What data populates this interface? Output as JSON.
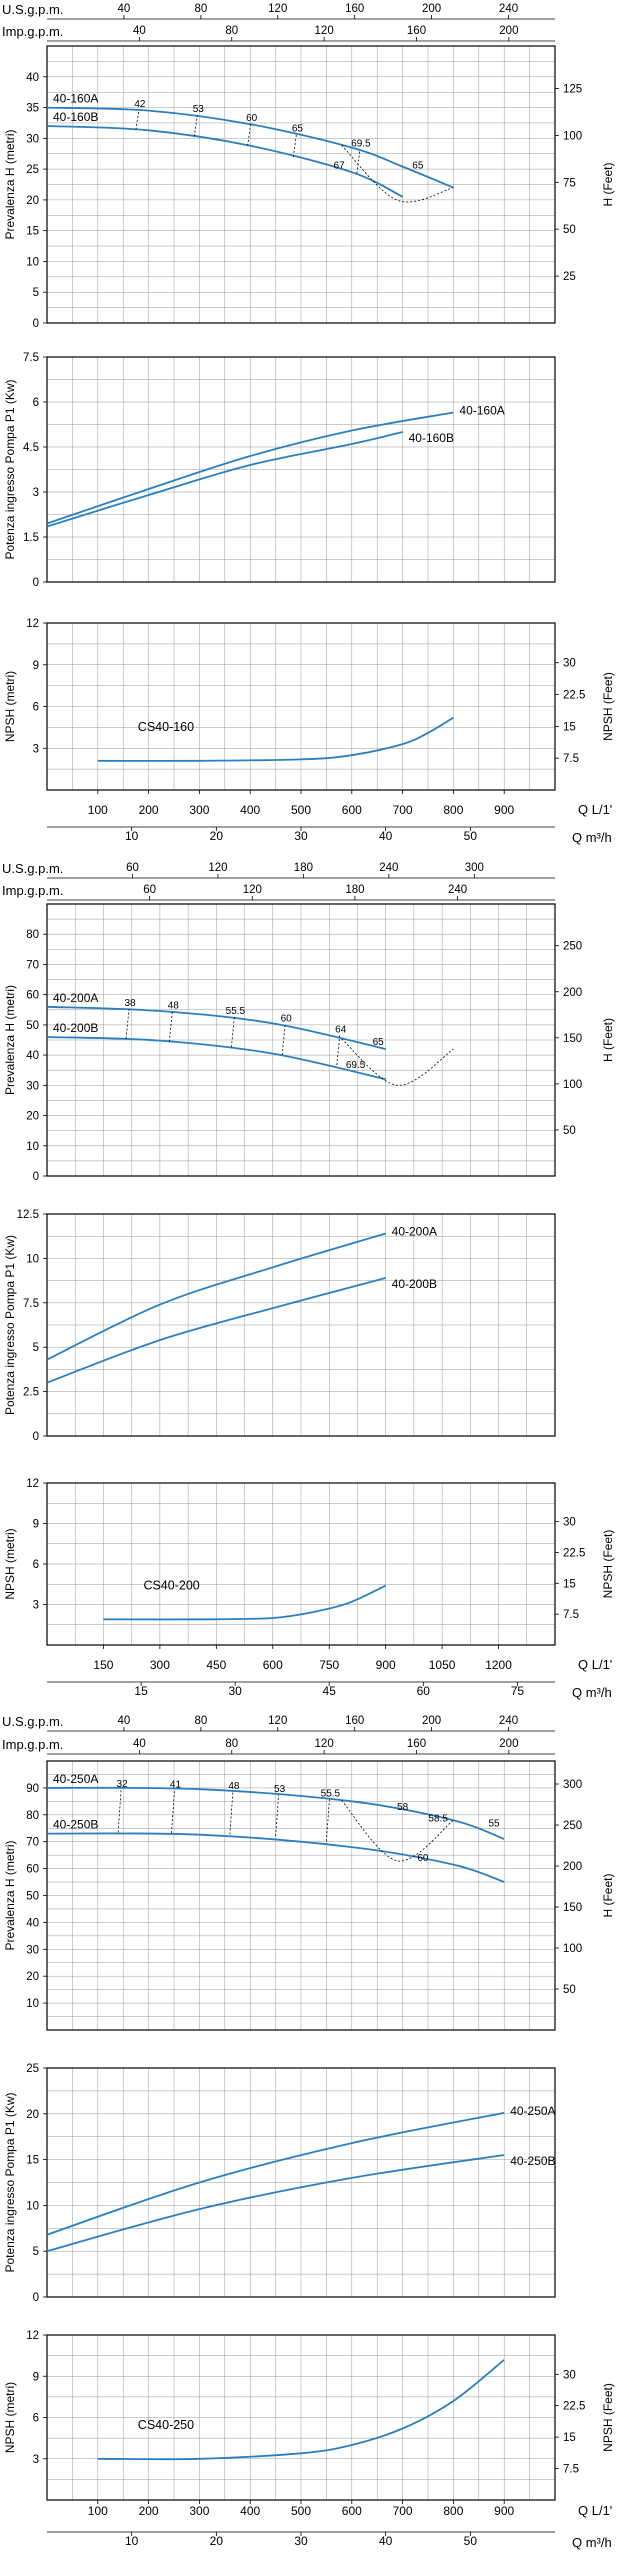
{
  "colors": {
    "curve": "#2a7fc0",
    "grid": "#9a9a9a",
    "frame": "#000000",
    "efficiency": "#000000"
  },
  "chart_data": [
    {
      "group": "40-160",
      "scales": [
        {
          "label": "U.S.g.p.m.",
          "ticks": [
            40,
            80,
            120,
            160,
            200,
            240
          ],
          "per_lmin": 0.264172
        },
        {
          "label": "Imp.g.p.m.",
          "ticks": [
            40,
            80,
            120,
            160,
            200
          ],
          "per_lmin": 0.219969
        }
      ],
      "bottom_scale": {
        "label": "Q m³/h",
        "ticks": [
          10,
          20,
          30,
          40,
          50
        ],
        "per_lmin": 0.06
      },
      "flow_axis": {
        "label": "Q L/1'",
        "min": 0,
        "max": 1000,
        "grid_step": 50,
        "ticks": [
          100,
          200,
          300,
          400,
          500,
          600,
          700,
          800,
          900
        ]
      },
      "panels": [
        {
          "type": "line",
          "ylabel": "Prevalenza H (metri)",
          "ylim": [
            0,
            45
          ],
          "grid_step": 2.5,
          "yticks": [
            0,
            5,
            10,
            15,
            20,
            25,
            30,
            35,
            40
          ],
          "right_axis": {
            "label": "H (Feet)",
            "ticks": [
              25,
              50,
              75,
              100,
              125
            ],
            "per_unit": 3.28084
          },
          "series": [
            {
              "name": "40-160A",
              "x": [
                0,
                200,
                400,
                600,
                700,
                800
              ],
              "y": [
                35.0,
                34.5,
                32.3,
                28.5,
                25.4,
                22.0
              ]
            },
            {
              "name": "40-160B",
              "x": [
                0,
                200,
                400,
                600,
                700
              ],
              "y": [
                32.0,
                31.3,
                28.8,
                24.5,
                20.5
              ]
            }
          ],
          "efficiency": [
            {
              "label": "42",
              "x": 175,
              "y1": 31.4,
              "y2": 34.6
            },
            {
              "label": "53",
              "x": 290,
              "y1": 30.3,
              "y2": 33.8
            },
            {
              "label": "60",
              "x": 395,
              "y1": 28.8,
              "y2": 32.3
            },
            {
              "label": "65",
              "x": 485,
              "y1": 27.0,
              "y2": 30.6
            },
            {
              "label": "69.5",
              "x": 610,
              "y1": 24.3,
              "y2": 28.2
            },
            {
              "label": "67",
              "x": 575,
              "y1": 24.8,
              "y2": 24.8
            },
            {
              "label": "65",
              "x": 730,
              "y1": 24.8,
              "y2": 24.8
            }
          ]
        },
        {
          "type": "line",
          "ylabel": "Potenza ingresso Pompa P1 (Kw)",
          "ylim": [
            0,
            7.5
          ],
          "grid_step": 0.75,
          "yticks": [
            0,
            1.5,
            3,
            4.5,
            6,
            7.5
          ],
          "series": [
            {
              "name": "40-160A",
              "x": [
                0,
                200,
                400,
                600,
                800
              ],
              "y": [
                1.95,
                3.1,
                4.2,
                5.05,
                5.65
              ]
            },
            {
              "name": "40-160B",
              "x": [
                0,
                200,
                400,
                600,
                700
              ],
              "y": [
                1.85,
                2.9,
                3.9,
                4.6,
                5.0
              ]
            }
          ]
        },
        {
          "type": "line",
          "ylabel": "NPSH (metri)",
          "ylim": [
            0,
            12
          ],
          "grid_step": 1.5,
          "yticks": [
            3,
            6,
            9,
            12
          ],
          "right_axis": {
            "label": "NPSH (Feet)",
            "ticks": [
              7.5,
              15,
              22.5,
              30
            ],
            "per_unit": 3.28084
          },
          "series": [
            {
              "name": "CS40-160",
              "x": [
                100,
                300,
                500,
                600,
                700,
                750,
                800
              ],
              "y": [
                2.1,
                2.1,
                2.2,
                2.5,
                3.3,
                4.1,
                5.2
              ]
            }
          ]
        }
      ]
    },
    {
      "group": "40-200",
      "scales": [
        {
          "label": "U.S.g.p.m.",
          "ticks": [
            60,
            120,
            180,
            240,
            300
          ],
          "per_lmin": 0.264172
        },
        {
          "label": "Imp.g.p.m.",
          "ticks": [
            60,
            120,
            180,
            240
          ],
          "per_lmin": 0.219969
        }
      ],
      "bottom_scale": {
        "label": "Q m³/h",
        "ticks": [
          15,
          30,
          45,
          60,
          75
        ],
        "per_lmin": 0.06
      },
      "flow_axis": {
        "label": "Q L/1'",
        "min": 0,
        "max": 1350,
        "grid_step": 75,
        "ticks": [
          150,
          300,
          450,
          600,
          750,
          900,
          1050,
          1200
        ]
      },
      "panels": [
        {
          "type": "line",
          "ylabel": "Prevalenza H (metri)",
          "ylim": [
            0,
            90
          ],
          "grid_step": 5,
          "yticks": [
            0,
            10,
            20,
            30,
            40,
            50,
            60,
            70,
            80
          ],
          "right_axis": {
            "label": "H (Feet)",
            "ticks": [
              50,
              100,
              150,
              200,
              250
            ],
            "per_unit": 3.28084
          },
          "series": [
            {
              "name": "40-200A",
              "x": [
                0,
                300,
                600,
                900
              ],
              "y": [
                56,
                54.6,
                50.5,
                42
              ]
            },
            {
              "name": "40-200B",
              "x": [
                0,
                300,
                600,
                900
              ],
              "y": [
                46,
                44.8,
                40.5,
                32
              ]
            }
          ],
          "efficiency": [
            {
              "label": "38",
              "x": 210,
              "y1": 45.5,
              "y2": 55.2
            },
            {
              "label": "48",
              "x": 325,
              "y1": 44.4,
              "y2": 54.4
            },
            {
              "label": "55.5",
              "x": 490,
              "y1": 42.6,
              "y2": 52.6
            },
            {
              "label": "60",
              "x": 625,
              "y1": 40.0,
              "y2": 50.2
            },
            {
              "label": "64",
              "x": 770,
              "y1": 36.7,
              "y2": 46.5
            },
            {
              "label": "65",
              "x": 880,
              "y1": 42.7,
              "y2": 42.7
            },
            {
              "label": "69.5",
              "x": 820,
              "y1": 35.0,
              "y2": 35.0
            }
          ]
        },
        {
          "type": "line",
          "ylabel": "Potenza ingresso Pompa P1 (Kw)",
          "ylim": [
            0,
            12.5
          ],
          "grid_step": 1.25,
          "yticks": [
            0,
            2.5,
            5,
            7.5,
            10,
            12.5
          ],
          "series": [
            {
              "name": "40-200A",
              "x": [
                0,
                300,
                600,
                900
              ],
              "y": [
                4.3,
                7.4,
                9.5,
                11.4
              ]
            },
            {
              "name": "40-200B",
              "x": [
                0,
                300,
                600,
                900
              ],
              "y": [
                3.0,
                5.4,
                7.2,
                8.9
              ]
            }
          ]
        },
        {
          "type": "line",
          "ylabel": "NPSH (metri)",
          "ylim": [
            0,
            12
          ],
          "grid_step": 1.5,
          "yticks": [
            3,
            6,
            9,
            12
          ],
          "right_axis": {
            "label": "NPSH (Feet)",
            "ticks": [
              7.5,
              15,
              22.5,
              30
            ],
            "per_unit": 3.28084
          },
          "series": [
            {
              "name": "CS40-200",
              "x": [
                150,
                450,
                600,
                700,
                800,
                900
              ],
              "y": [
                1.9,
                1.9,
                2.0,
                2.4,
                3.1,
                4.4
              ]
            }
          ]
        }
      ]
    },
    {
      "group": "40-250",
      "scales": [
        {
          "label": "U.S.g.p.m.",
          "ticks": [
            40,
            80,
            120,
            160,
            200,
            240
          ],
          "per_lmin": 0.264172
        },
        {
          "label": "Imp.g.p.m.",
          "ticks": [
            40,
            80,
            120,
            160,
            200
          ],
          "per_lmin": 0.219969
        }
      ],
      "bottom_scale": {
        "label": "Q m³/h",
        "ticks": [
          10,
          20,
          30,
          40,
          50
        ],
        "per_lmin": 0.06
      },
      "flow_axis": {
        "label": "Q L/1'",
        "min": 0,
        "max": 1000,
        "grid_step": 50,
        "ticks": [
          100,
          200,
          300,
          400,
          500,
          600,
          700,
          800,
          900
        ]
      },
      "panels": [
        {
          "type": "line",
          "ylabel": "Prevalenza H (metri)",
          "ylim": [
            0,
            100
          ],
          "grid_step": 5,
          "yticks": [
            10,
            20,
            30,
            40,
            50,
            60,
            70,
            80,
            90
          ],
          "right_axis": {
            "label": "H (Feet)",
            "ticks": [
              50,
              100,
              150,
              200,
              250,
              300
            ],
            "per_unit": 3.28084
          },
          "series": [
            {
              "name": "40-250A",
              "x": [
                0,
                300,
                600,
                800,
                900
              ],
              "y": [
                90,
                89.5,
                85.0,
                78.0,
                71.0
              ]
            },
            {
              "name": "40-250B",
              "x": [
                0,
                300,
                600,
                800,
                900
              ],
              "y": [
                73,
                72.6,
                68.0,
                61.5,
                55.0
              ]
            }
          ],
          "efficiency": [
            {
              "label": "32",
              "x": 140,
              "y1": 73.5,
              "y2": 89.3
            },
            {
              "label": "41",
              "x": 245,
              "y1": 73.2,
              "y2": 89.0
            },
            {
              "label": "48",
              "x": 360,
              "y1": 72.7,
              "y2": 88.4
            },
            {
              "label": "53",
              "x": 450,
              "y1": 72.1,
              "y2": 87.3
            },
            {
              "label": "55.5",
              "x": 550,
              "y1": 70.2,
              "y2": 85.6
            },
            {
              "label": "58",
              "x": 700,
              "y1": 81.0,
              "y2": 81.0
            },
            {
              "label": "58.5",
              "x": 770,
              "y1": 76.8,
              "y2": 76.8
            },
            {
              "label": "55",
              "x": 880,
              "y1": 75.0,
              "y2": 75.0
            },
            {
              "label": "60",
              "x": 740,
              "y1": 62.0,
              "y2": 62.0
            }
          ]
        },
        {
          "type": "line",
          "ylabel": "Potenza ingresso Pompa P1 (Kw)",
          "ylim": [
            0,
            25
          ],
          "grid_step": 2.5,
          "yticks": [
            0,
            5,
            10,
            15,
            20,
            25
          ],
          "series": [
            {
              "name": "40-250A",
              "x": [
                0,
                300,
                600,
                900
              ],
              "y": [
                6.8,
                12.5,
                16.8,
                20.1
              ]
            },
            {
              "name": "40-250B",
              "x": [
                0,
                300,
                600,
                900
              ],
              "y": [
                5.0,
                9.6,
                13.0,
                15.5
              ]
            }
          ]
        },
        {
          "type": "line",
          "ylabel": "NPSH (metri)",
          "ylim": [
            0,
            12
          ],
          "grid_step": 1.5,
          "yticks": [
            3,
            6,
            9,
            12
          ],
          "right_axis": {
            "label": "NPSH (Feet)",
            "ticks": [
              7.5,
              15,
              22.5,
              30
            ],
            "per_unit": 3.28084
          },
          "series": [
            {
              "name": "CS40-250",
              "x": [
                100,
                300,
                500,
                600,
                700,
                800,
                900
              ],
              "y": [
                3.0,
                3.0,
                3.4,
                4.0,
                5.2,
                7.2,
                10.2
              ]
            }
          ]
        }
      ]
    }
  ]
}
